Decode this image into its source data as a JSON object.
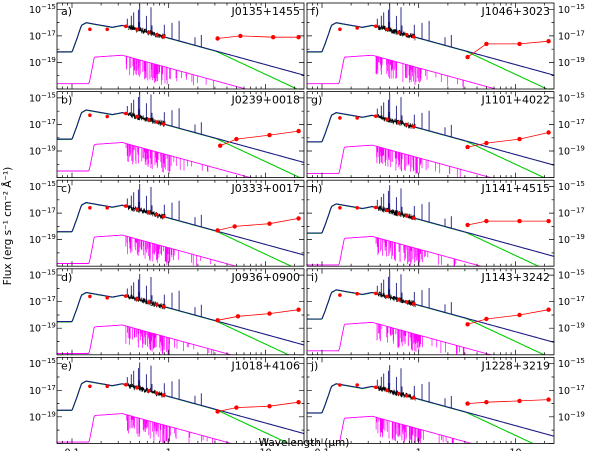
{
  "chart_data": {
    "type": "line",
    "xlabel": "Wavelength (μm)",
    "ylabel": "Flux (erg s⁻¹ cm⁻² Å⁻¹)",
    "xscale": "log",
    "yscale": "log",
    "xlim": [
      0.07,
      25
    ],
    "ylim": [
      1e-21,
      3e-15
    ],
    "x_ticks": [
      {
        "value": 0.1,
        "label": "0.1"
      },
      {
        "value": 1,
        "label": "1"
      },
      {
        "value": 10,
        "label": "10"
      }
    ],
    "y_ticks": [
      {
        "value": 1e-15,
        "base": "10",
        "exp": "−15"
      },
      {
        "value": 1e-17,
        "base": "10",
        "exp": "−17"
      },
      {
        "value": 1e-19,
        "base": "10",
        "exp": "−19"
      }
    ],
    "series_colors": {
      "total_model": "#1a1a80",
      "stellar_model": "#ff00ff",
      "nebular_model": "#00cc00",
      "observed_spectrum": "#000000",
      "photometry": "#ff0000"
    },
    "panels": [
      {
        "letter": "a)",
        "object": "J0135+1455",
        "peak": -16.0,
        "irx": [
          3.2,
          5.5,
          12,
          22
        ],
        "irf": [
          -17.2,
          -17.0,
          -17.1,
          -17.1
        ],
        "uvf": [
          -16.5,
          -16.5
        ]
      },
      {
        "letter": "b)",
        "object": "J0239+0018",
        "peak": -15.9,
        "irx": [
          3.4,
          5.0,
          11,
          22
        ],
        "irf": [
          -18.6,
          -18.1,
          -17.8,
          -17.5
        ],
        "uvf": [
          -16.3,
          -16.4
        ]
      },
      {
        "letter": "c)",
        "object": "J0333+0017",
        "peak": -16.2,
        "irx": [
          3.2,
          4.8,
          11,
          22
        ],
        "irf": [
          -18.3,
          -18.0,
          -17.8,
          -17.4
        ],
        "uvf": [
          -16.6,
          -16.6
        ]
      },
      {
        "letter": "d)",
        "object": "J0936+0900",
        "peak": -16.3,
        "irx": [
          3.2,
          5.2,
          11,
          22
        ],
        "irf": [
          -18.4,
          -18.1,
          -17.9,
          -17.6
        ],
        "uvf": [
          -16.6,
          -16.7
        ]
      },
      {
        "letter": "e)",
        "object": "J1018+4106",
        "peak": -16.3,
        "irx": [
          3.2,
          5.0,
          11,
          22
        ],
        "irf": [
          -18.6,
          -18.3,
          -18.2,
          -17.9
        ],
        "uvf": [
          -16.7,
          -16.7
        ]
      },
      {
        "letter": "f)",
        "object": "J1046+3023",
        "peak": -16.0,
        "irx": [
          3.2,
          5.0,
          11,
          22
        ],
        "irf": [
          -18.6,
          -17.6,
          -17.6,
          -17.4
        ],
        "uvf": [
          -16.5,
          -16.4
        ]
      },
      {
        "letter": "g)",
        "object": "J1101+4022",
        "peak": -16.1,
        "irx": [
          3.2,
          5.0,
          11,
          22
        ],
        "irf": [
          -18.7,
          -18.4,
          -18.1,
          -17.6
        ],
        "uvf": [
          -16.5,
          -16.5
        ]
      },
      {
        "letter": "h)",
        "object": "J1141+4515",
        "peak": -16.3,
        "irx": [
          3.2,
          5.0,
          11,
          22
        ],
        "irf": [
          -17.9,
          -17.6,
          -17.6,
          -17.6
        ],
        "uvf": [
          -16.6,
          -16.6
        ]
      },
      {
        "letter": "i)",
        "object": "J1143+3242",
        "peak": -16.1,
        "irx": [
          3.2,
          5.0,
          11,
          22
        ],
        "irf": [
          -18.7,
          -18.3,
          -18.0,
          -17.6
        ],
        "uvf": [
          -16.5,
          -16.4
        ]
      },
      {
        "letter": "j)",
        "object": "J1228+3219",
        "peak": -16.5,
        "irx": [
          3.2,
          5.0,
          11,
          22
        ],
        "irf": [
          -18.0,
          -17.9,
          -17.8,
          -17.7
        ],
        "uvf": [
          -16.6,
          -16.6
        ]
      }
    ]
  }
}
